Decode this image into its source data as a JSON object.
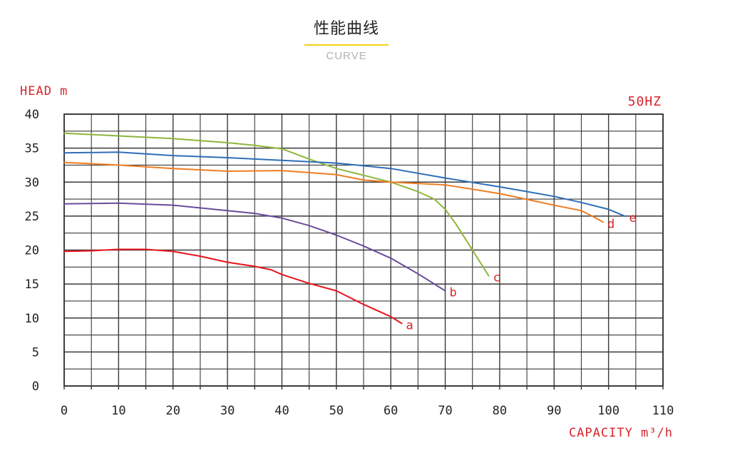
{
  "header": {
    "title": "性能曲线",
    "subtitle": "CURVE"
  },
  "chart_data": {
    "type": "line",
    "ylabel": "HEAD m",
    "xlabel": "CAPACITY m³/h",
    "frequency_label": "50HZ",
    "xlim": [
      0,
      110
    ],
    "ylim": [
      0,
      40
    ],
    "x_ticks": [
      "0",
      "10",
      "20",
      "30",
      "40",
      "50",
      "60",
      "70",
      "80",
      "90",
      "100",
      "110"
    ],
    "y_ticks": [
      "0",
      "5",
      "10",
      "15",
      "20",
      "25",
      "30",
      "35",
      "40"
    ],
    "grid": true,
    "series": [
      {
        "name": "a",
        "color": "#e8141c",
        "x": [
          0,
          5,
          10,
          15,
          20,
          25,
          30,
          35,
          38,
          40,
          45,
          50,
          55,
          60,
          62
        ],
        "y": [
          19.8,
          19.9,
          20.1,
          20.1,
          19.8,
          19.1,
          18.2,
          17.6,
          17.1,
          16.4,
          15.1,
          14.0,
          12.0,
          10.2,
          9.2
        ]
      },
      {
        "name": "b",
        "color": "#6a4c9c",
        "x": [
          0,
          10,
          20,
          30,
          35,
          40,
          45,
          50,
          55,
          60,
          65,
          70
        ],
        "y": [
          26.8,
          26.9,
          26.6,
          25.8,
          25.4,
          24.7,
          23.6,
          22.2,
          20.6,
          18.8,
          16.5,
          14.0
        ]
      },
      {
        "name": "c",
        "color": "#8db63c",
        "x": [
          0,
          10,
          20,
          30,
          35,
          40,
          45,
          50,
          55,
          60,
          65,
          68,
          70,
          72,
          75,
          78
        ],
        "y": [
          37.2,
          36.8,
          36.4,
          35.8,
          35.4,
          34.9,
          33.4,
          32.0,
          31.0,
          30.0,
          28.6,
          27.5,
          26.0,
          23.8,
          20.0,
          16.2
        ]
      },
      {
        "name": "d",
        "color": "#ef7d22",
        "x": [
          0,
          10,
          20,
          30,
          40,
          50,
          55,
          60,
          70,
          80,
          90,
          95,
          97,
          99
        ],
        "y": [
          32.9,
          32.5,
          32.0,
          31.6,
          31.7,
          31.1,
          30.3,
          30.0,
          29.6,
          28.3,
          26.6,
          25.8,
          25.0,
          24.1
        ]
      },
      {
        "name": "e",
        "color": "#2f6eb8",
        "x": [
          0,
          10,
          20,
          30,
          40,
          50,
          55,
          60,
          70,
          80,
          90,
          95,
          100,
          103
        ],
        "y": [
          34.3,
          34.4,
          33.9,
          33.6,
          33.2,
          32.8,
          32.4,
          32.0,
          30.6,
          29.3,
          27.9,
          27.0,
          26.0,
          25.0
        ]
      }
    ]
  }
}
